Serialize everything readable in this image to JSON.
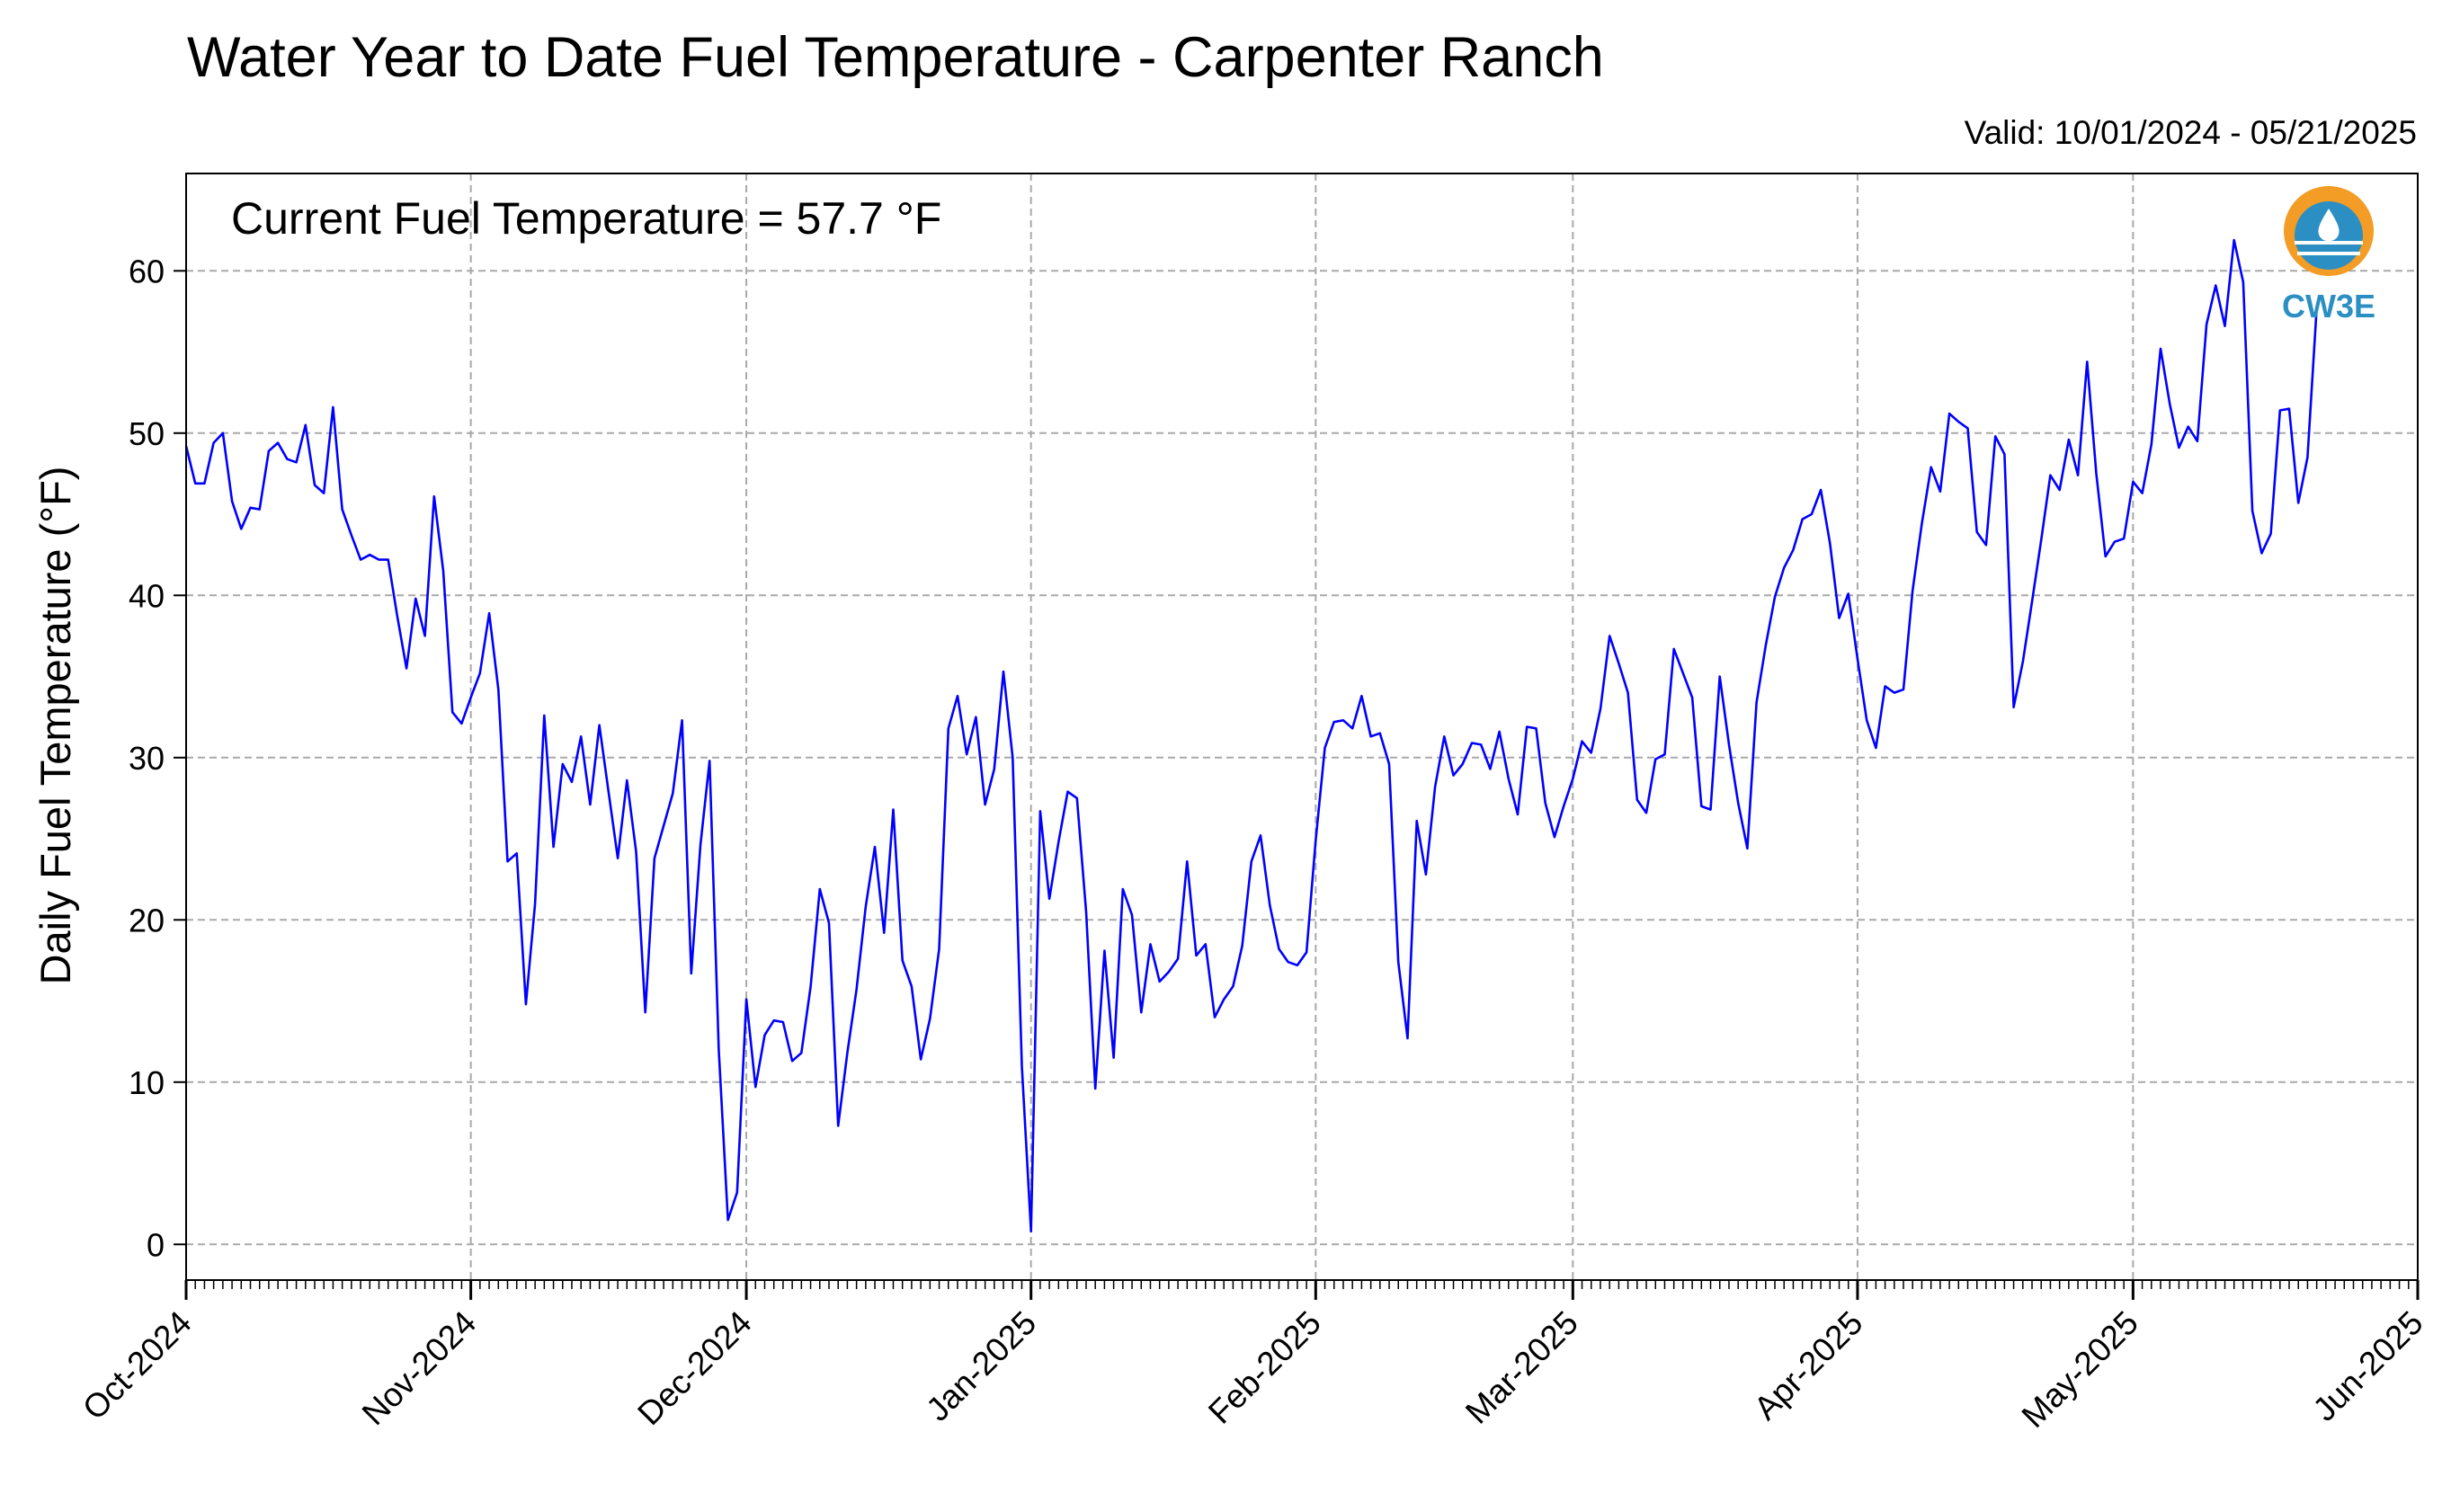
{
  "chart_data": {
    "type": "line",
    "title": "Water Year to Date Fuel Temperature - Carpenter Ranch",
    "valid_label": "Valid: 10/01/2024 - 05/21/2025",
    "annotation": "Current Fuel Temperature = 57.7 °F",
    "ylabel": "Daily Fuel Temperature (°F)",
    "xlabel": "",
    "xlim": [
      "2024-10-01",
      "2025-06-01"
    ],
    "ylim": [
      -2.2,
      66
    ],
    "yticks": [
      0,
      10,
      20,
      30,
      40,
      50,
      60
    ],
    "xticks": [
      {
        "date": "2024-10-01",
        "label": "Oct-2024"
      },
      {
        "date": "2024-11-01",
        "label": "Nov-2024"
      },
      {
        "date": "2024-12-01",
        "label": "Dec-2024"
      },
      {
        "date": "2025-01-01",
        "label": "Jan-2025"
      },
      {
        "date": "2025-02-01",
        "label": "Feb-2025"
      },
      {
        "date": "2025-03-01",
        "label": "Mar-2025"
      },
      {
        "date": "2025-04-01",
        "label": "Apr-2025"
      },
      {
        "date": "2025-05-01",
        "label": "May-2025"
      },
      {
        "date": "2025-06-01",
        "label": "Jun-2025"
      }
    ],
    "grid": true,
    "start_date": "2024-10-01",
    "line_color": "#0000ff",
    "logo_text": "CW3E",
    "logo_colors": {
      "orange": "#f39c26",
      "blue": "#2b8fc4"
    },
    "series": [
      {
        "values": [
          49.2,
          46.9,
          46.9,
          49.4,
          50.0,
          45.8,
          44.1,
          45.4,
          45.3,
          48.9,
          49.4,
          48.4,
          48.2,
          50.5,
          46.8,
          46.3,
          51.6,
          45.3,
          43.7,
          42.2,
          42.5,
          42.2,
          42.2,
          38.7,
          35.5,
          39.8,
          37.5,
          46.1,
          41.5,
          32.8,
          32.1,
          33.7,
          35.2,
          38.9,
          34.2,
          23.6,
          24.1,
          14.8,
          21.0,
          32.6,
          24.5,
          29.6,
          28.5,
          31.3,
          27.1,
          32.0,
          27.9,
          23.8,
          28.6,
          24.2,
          14.3,
          23.8,
          25.8,
          27.8,
          32.3,
          16.7,
          24.6,
          29.8,
          12.0,
          1.5,
          3.2,
          15.1,
          9.7,
          12.9,
          13.8,
          13.7,
          11.3,
          11.8,
          15.9,
          21.9,
          19.8,
          7.3,
          11.8,
          15.7,
          20.8,
          24.5,
          19.2,
          26.8,
          17.5,
          15.9,
          11.4,
          13.9,
          18.2,
          31.8,
          33.8,
          30.2,
          32.5,
          27.1,
          29.3,
          35.3,
          30.0,
          11.0,
          0.8,
          26.7,
          21.3,
          24.8,
          27.9,
          27.5,
          20.5,
          9.6,
          18.1,
          11.5,
          21.9,
          20.3,
          14.3,
          18.5,
          16.2,
          16.8,
          17.6,
          23.6,
          17.8,
          18.5,
          14.0,
          15.1,
          15.9,
          18.4,
          23.6,
          25.2,
          20.9,
          18.2,
          17.4,
          17.2,
          18.0,
          24.9,
          30.6,
          32.2,
          32.3,
          31.8,
          33.8,
          31.3,
          31.5,
          29.6,
          17.4,
          12.7,
          26.1,
          22.8,
          28.2,
          31.3,
          28.9,
          29.6,
          30.9,
          30.8,
          29.3,
          31.6,
          28.7,
          26.5,
          31.9,
          31.8,
          27.2,
          25.1,
          27.0,
          28.7,
          31.0,
          30.3,
          33.0,
          37.5,
          35.8,
          34.0,
          27.4,
          26.6,
          29.9,
          30.2,
          36.7,
          35.2,
          33.7,
          27.0,
          26.8,
          35.0,
          30.8,
          27.2,
          24.4,
          33.4,
          36.9,
          39.9,
          41.7,
          42.8,
          44.7,
          45.0,
          46.5,
          43.2,
          38.6,
          40.1,
          36.1,
          32.3,
          30.6,
          34.4,
          34.0,
          34.2,
          40.3,
          44.4,
          47.9,
          46.4,
          51.2,
          50.7,
          50.3,
          43.9,
          43.1,
          49.8,
          48.7,
          33.1,
          35.9,
          39.6,
          43.4,
          47.4,
          46.5,
          49.6,
          47.4,
          54.4,
          47.5,
          42.4,
          43.3,
          43.5,
          47.0,
          46.3,
          49.3,
          55.2,
          51.8,
          49.1,
          50.4,
          49.5,
          56.7,
          59.1,
          56.6,
          61.9,
          59.3,
          45.2,
          42.6,
          43.8,
          51.4,
          51.5,
          45.7,
          48.5,
          57.7
        ]
      }
    ]
  }
}
